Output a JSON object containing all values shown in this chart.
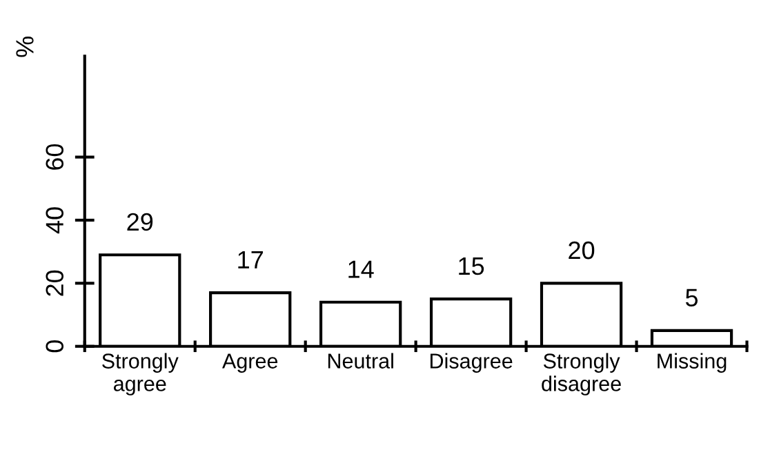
{
  "chart_data": {
    "type": "bar",
    "ylabel": "%",
    "categories": [
      "Strongly\nagree",
      "Agree",
      "Neutral",
      "Disagree",
      "Strongly\ndisagree",
      "Missing"
    ],
    "values": [
      29,
      17,
      14,
      15,
      20,
      5
    ],
    "color": "#ffffff",
    "ylim": [
      0,
      92
    ],
    "yticks": [
      0,
      20,
      40,
      60
    ],
    "data_labels": true,
    "grid": false,
    "legend": false
  }
}
